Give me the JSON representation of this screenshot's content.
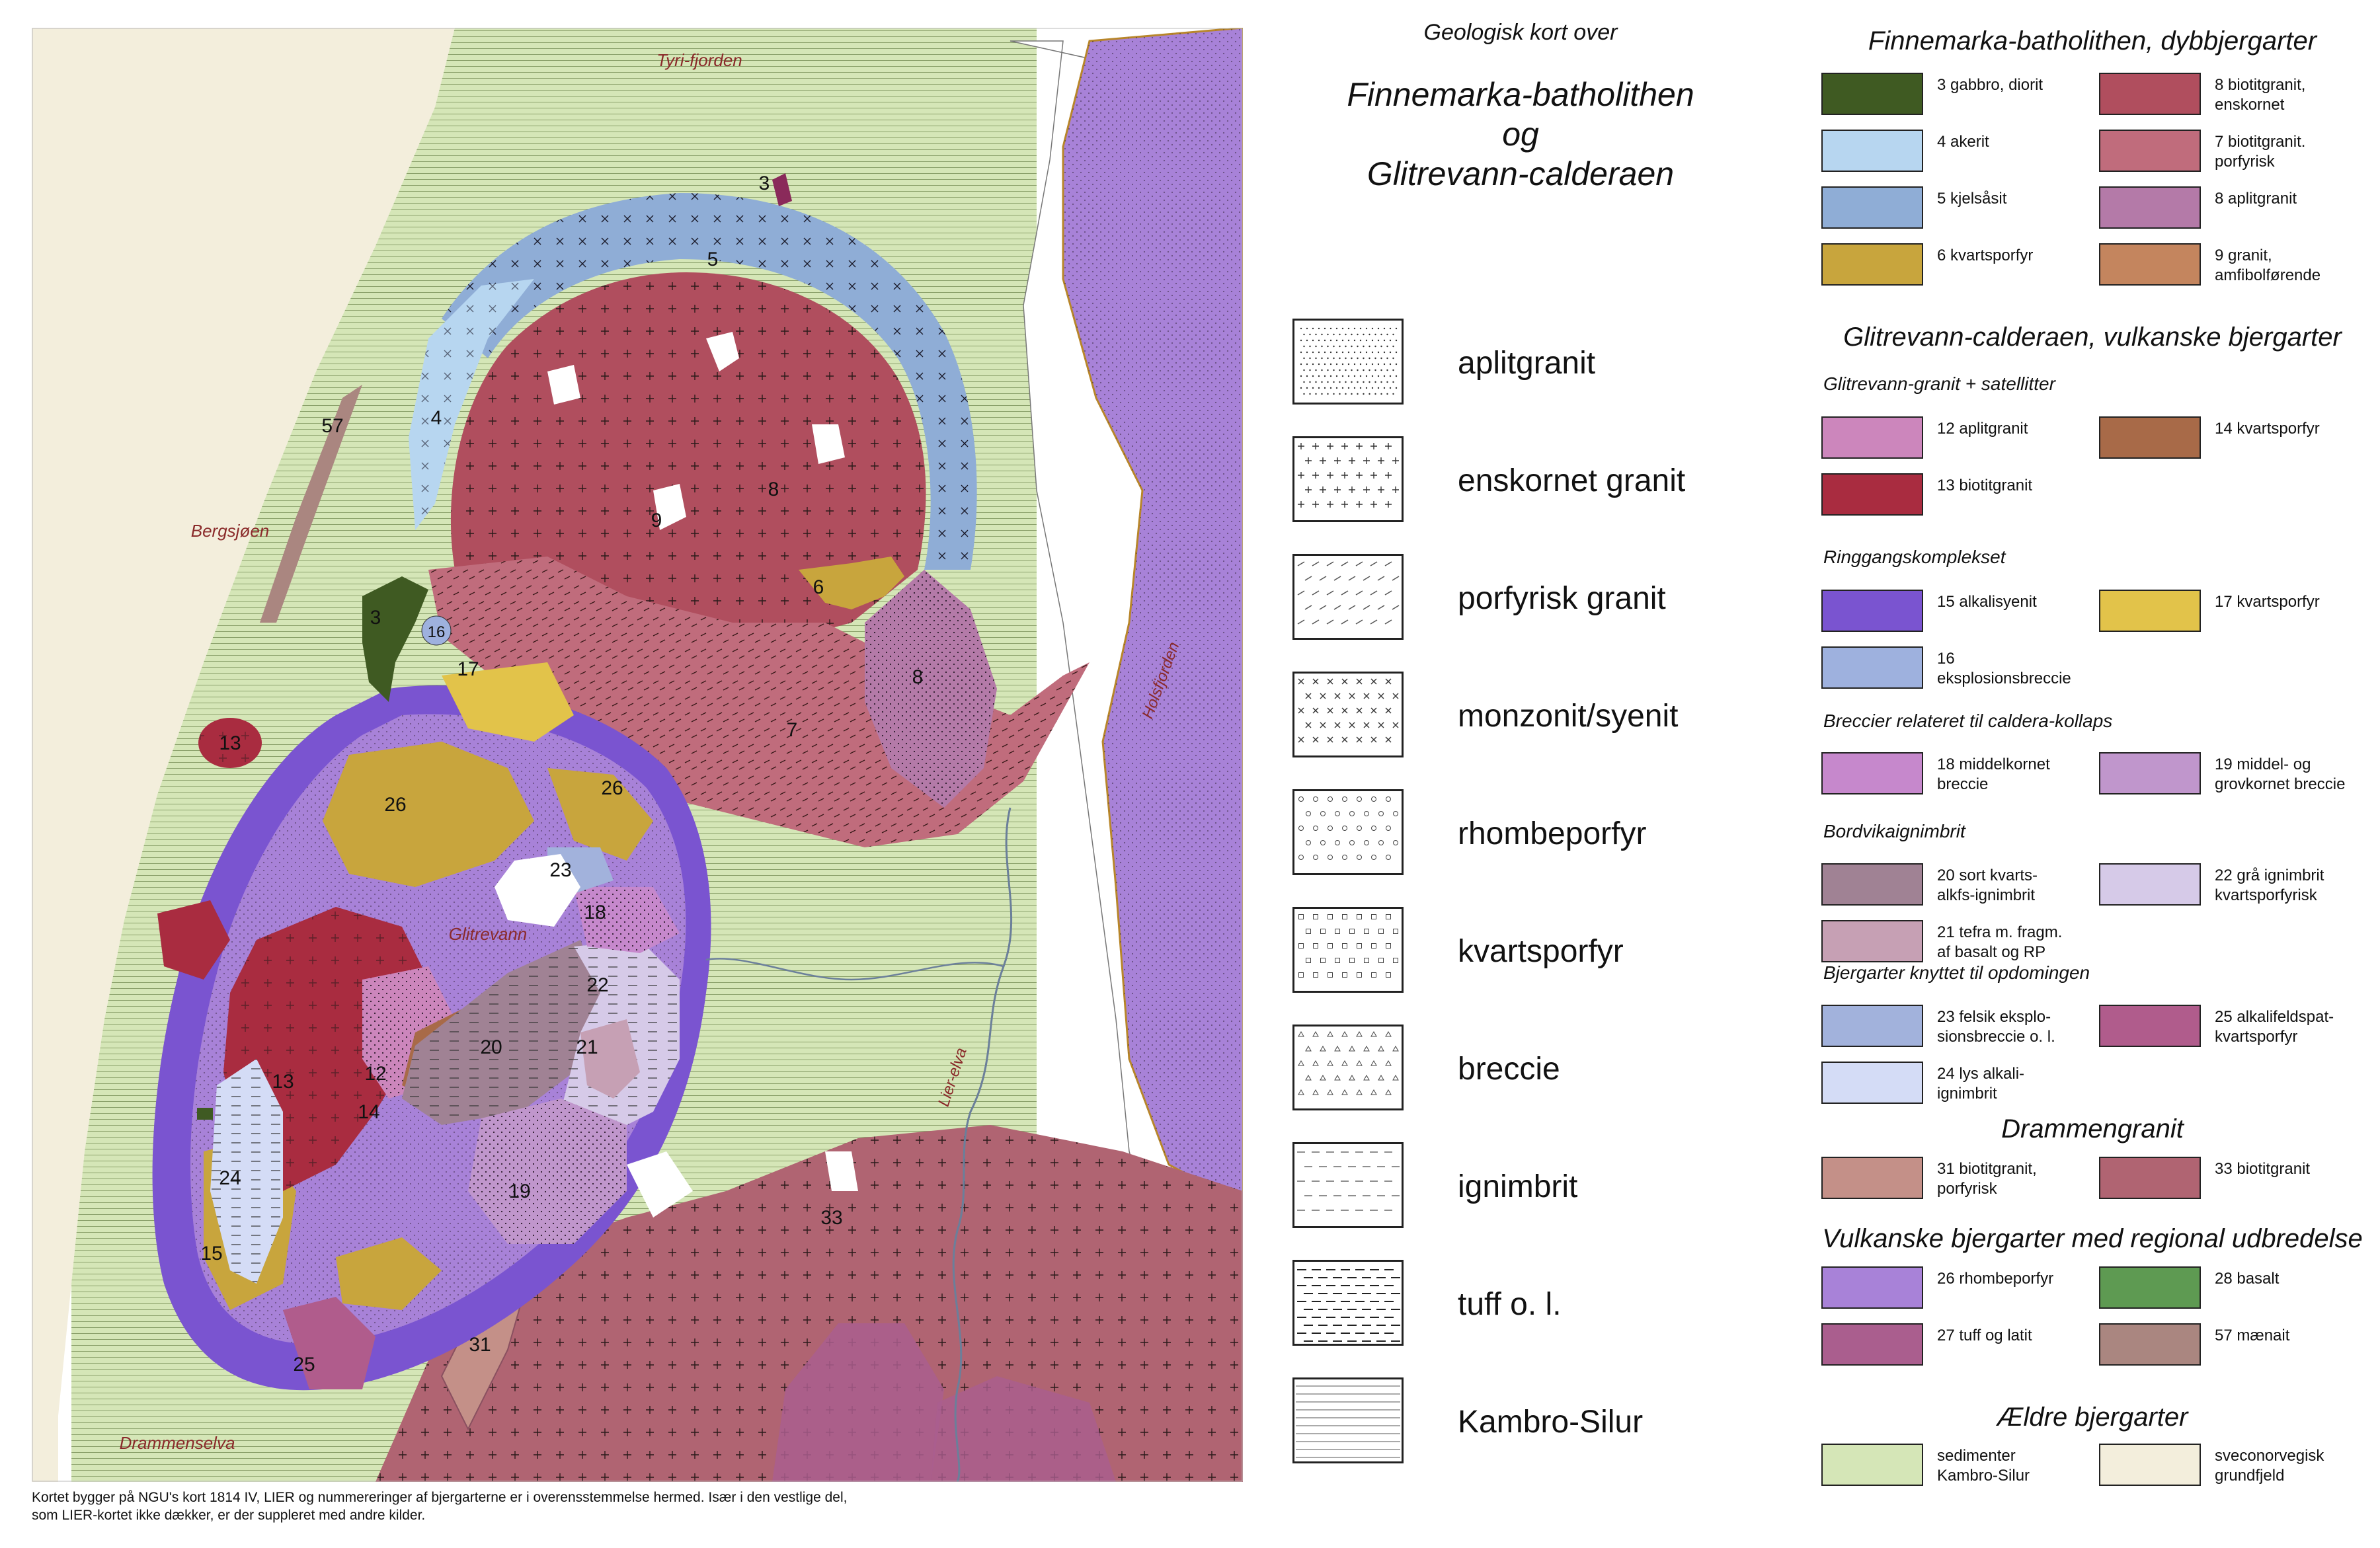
{
  "title": {
    "small": "Geologisk kort over",
    "line1": "Finnemarka-batholithen",
    "line2": "og",
    "line3": "Glitrevann-calderaen"
  },
  "texture_legend": [
    {
      "label": "aplitgranit",
      "pattern": "dots"
    },
    {
      "label": "enskornet granit",
      "pattern": "plus"
    },
    {
      "label": "porfyrisk granit",
      "pattern": "dash-slant"
    },
    {
      "label": "monzonit/syenit",
      "pattern": "cross"
    },
    {
      "label": "rhombeporfyr",
      "pattern": "circle"
    },
    {
      "label": "kvartsporfyr",
      "pattern": "square"
    },
    {
      "label": "breccie",
      "pattern": "triangle"
    },
    {
      "label": "ignimbrit",
      "pattern": "dash"
    },
    {
      "label": "tuff o. l.",
      "pattern": "bold-dash"
    },
    {
      "label": "Kambro-Silur",
      "pattern": "lines"
    }
  ],
  "legend": {
    "sections": [
      {
        "heading": "Finnemarka-batholithen, dybbjergarter",
        "groups": [
          {
            "sub": "",
            "items": [
              {
                "label": "3 gabbro, diorit",
                "color": "#3f5a22"
              },
              {
                "label": "8 biotitgranit,\nenskornet",
                "color": "#b04e5e"
              },
              {
                "label": "4 akerit",
                "color": "#b7d6f0"
              },
              {
                "label": "7 biotitgranit.\nporfyrisk",
                "color": "#c06c7c"
              },
              {
                "label": "5 kjelsåsit",
                "color": "#8fadd6"
              },
              {
                "label": "8 aplitgranit",
                "color": "#b47aa8"
              },
              {
                "label": "6 kvartsporfyr",
                "color": "#c8a53d"
              },
              {
                "label": "9 granit,\namfibolførende",
                "color": "#c4855e"
              }
            ]
          }
        ]
      },
      {
        "heading": "Glitrevann-calderaen, vulkanske bjergarter",
        "groups": [
          {
            "sub": "Glitrevann-granit + satellitter",
            "items": [
              {
                "label": "12 aplitgranit",
                "color": "#cc86bc"
              },
              {
                "label": "14 kvartsporfyr",
                "color": "#a86a48"
              },
              {
                "label": "13 biotitgranit",
                "color": "#a92c40"
              }
            ]
          },
          {
            "sub": "Ringgangskomplekset",
            "items": [
              {
                "label": "15 alkalisyenit",
                "color": "#7a54d0"
              },
              {
                "label": "17 kvartsporfyr",
                "color": "#e2c34a"
              },
              {
                "label": "16 eksplosionsbreccie",
                "color": "#9eb1de"
              }
            ]
          },
          {
            "sub": "Breccier relateret til caldera-kollaps",
            "items": [
              {
                "label": "18 middelkornet\nbreccie",
                "color": "#c688cc"
              },
              {
                "label": "19 middel- og\ngrovkornet breccie",
                "color": "#c096cc"
              }
            ]
          },
          {
            "sub": "Bordvikaignimbrit",
            "items": [
              {
                "label": "20 sort kvarts-\nalkfs-ignimbrit",
                "color": "#a08294"
              },
              {
                "label": "22 grå ignimbrit\nkvartsporfyrisk",
                "color": "#d6cae8"
              },
              {
                "label": "21 tefra m. fragm.\naf basalt og RP",
                "color": "#c6a0b4"
              }
            ]
          },
          {
            "sub": "Bjergarter knyttet til opdomingen",
            "items": [
              {
                "label": "23 felsik eksplo-\nsionsbreccie o. l.",
                "color": "#a2b2dc"
              },
              {
                "label": "25 alkalifeldspat-\nkvartsporfyr",
                "color": "#b05c8c"
              },
              {
                "label": "24 lys alkali-\nignimbrit",
                "color": "#d4dcf6"
              }
            ]
          }
        ]
      },
      {
        "heading": "Drammengranit",
        "groups": [
          {
            "sub": "",
            "items": [
              {
                "label": "31 biotitgranit,\nporfyrisk",
                "color": "#c49088"
              },
              {
                "label": "33 biotitgranit",
                "color": "#b06472"
              }
            ]
          }
        ]
      },
      {
        "heading": "Vulkanske bjergarter med regional udbredelse",
        "groups": [
          {
            "sub": "",
            "items": [
              {
                "label": "26 rhombeporfyr",
                "color": "#a882d8"
              },
              {
                "label": "28 basalt",
                "color": "#5e9a52"
              },
              {
                "label": "27 tuff og latit",
                "color": "#aa5e8e"
              },
              {
                "label": "57 mænait",
                "color": "#aa8680"
              }
            ]
          }
        ]
      },
      {
        "heading": "Ældre bjergarter",
        "groups": [
          {
            "sub": "",
            "items": [
              {
                "label": "sedimenter\nKambro-Silur",
                "color": "#d5e6b7"
              },
              {
                "label": "sveconorvegisk\ngrundfjeld",
                "color": "#f3eedc"
              }
            ]
          }
        ]
      }
    ]
  },
  "map": {
    "place_names": {
      "tyrifjorden": "Tyri-fjorden",
      "bergsjoen": "Bergsjøen",
      "holsfjorden": "Holsfjorden",
      "glitrevann": "Glitrevann",
      "lierelva": "Lier-elva",
      "drammenselva": "Drammenselva"
    },
    "unit_numbers": {
      "u3a": "3",
      "u3b": "3",
      "u5": "5",
      "u4": "4",
      "u57": "57",
      "u9": "9",
      "u8a": "8",
      "u8b": "8",
      "u6": "6",
      "u7": "7",
      "u16": "16",
      "u17": "17",
      "u13a": "13",
      "u13b": "13",
      "u26a": "26",
      "u26b": "26",
      "u23": "23",
      "u18": "18",
      "u22": "22",
      "u21": "21",
      "u20": "20",
      "u12": "12",
      "u14": "14",
      "u24": "24",
      "u15": "15",
      "u19": "19",
      "u33": "33",
      "u31": "31",
      "u25": "25"
    }
  },
  "footnote": "Kortet bygger på NGU's kort 1814 IV, LIER og nummereringer af bjergarterne er i overensstemmelse hermed. Især i den vestlige del,\nsom LIER-kortet ikke dækker, er der suppleret med andre kilder."
}
